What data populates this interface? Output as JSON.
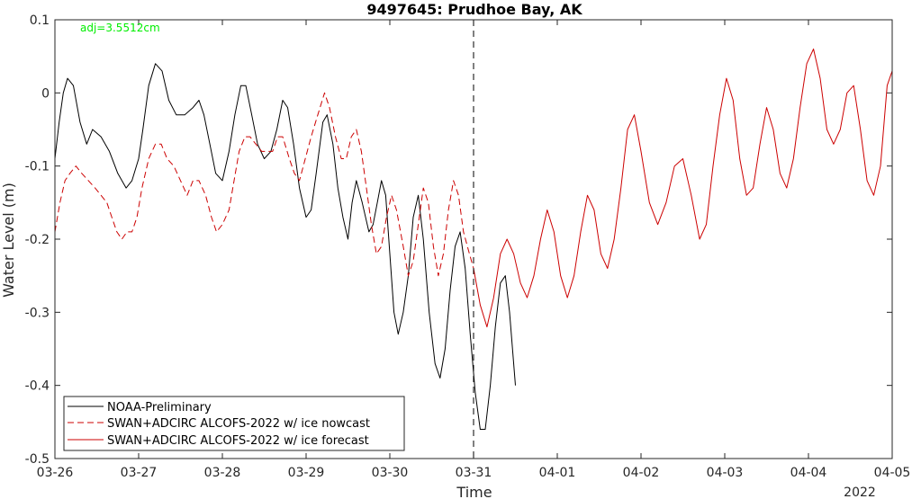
{
  "chart_data": {
    "type": "line",
    "title": "9497645: Prudhoe Bay, AK",
    "xlabel": "Time",
    "ylabel": "Water Level (m)",
    "year_label": "2022",
    "annotation": {
      "text": "adj=3.5512cm",
      "color": "#00ee00"
    },
    "x_ticks": [
      "03-26",
      "03-27",
      "03-28",
      "03-29",
      "03-30",
      "03-31",
      "04-01",
      "04-02",
      "04-03",
      "04-04",
      "04-05"
    ],
    "xlim_days": [
      0,
      10
    ],
    "ylim": [
      -0.5,
      0.1
    ],
    "y_ticks": [
      0.1,
      0,
      -0.1,
      -0.2,
      -0.3,
      -0.4,
      -0.5
    ],
    "y_tick_labels": [
      "0.1",
      "0",
      "-0.1",
      "-0.2",
      "-0.3",
      "-0.4",
      "-0.5"
    ],
    "nowcast_forecast_split_day": 5,
    "legend": {
      "position": "bottom-left"
    },
    "series": [
      {
        "name": "NOAA-Preliminary",
        "color": "#000000",
        "style": "solid",
        "points": [
          [
            0.0,
            -0.09
          ],
          [
            0.05,
            -0.04
          ],
          [
            0.1,
            0.0
          ],
          [
            0.15,
            0.02
          ],
          [
            0.22,
            0.01
          ],
          [
            0.3,
            -0.04
          ],
          [
            0.38,
            -0.07
          ],
          [
            0.45,
            -0.05
          ],
          [
            0.55,
            -0.06
          ],
          [
            0.65,
            -0.08
          ],
          [
            0.75,
            -0.11
          ],
          [
            0.85,
            -0.13
          ],
          [
            0.92,
            -0.12
          ],
          [
            1.0,
            -0.09
          ],
          [
            1.05,
            -0.05
          ],
          [
            1.12,
            0.01
          ],
          [
            1.2,
            0.04
          ],
          [
            1.28,
            0.03
          ],
          [
            1.36,
            -0.01
          ],
          [
            1.45,
            -0.03
          ],
          [
            1.55,
            -0.03
          ],
          [
            1.65,
            -0.02
          ],
          [
            1.72,
            -0.01
          ],
          [
            1.78,
            -0.03
          ],
          [
            1.85,
            -0.07
          ],
          [
            1.92,
            -0.11
          ],
          [
            2.0,
            -0.12
          ],
          [
            2.08,
            -0.08
          ],
          [
            2.15,
            -0.03
          ],
          [
            2.22,
            0.01
          ],
          [
            2.28,
            0.01
          ],
          [
            2.35,
            -0.03
          ],
          [
            2.42,
            -0.07
          ],
          [
            2.5,
            -0.09
          ],
          [
            2.58,
            -0.08
          ],
          [
            2.65,
            -0.05
          ],
          [
            2.72,
            -0.01
          ],
          [
            2.78,
            -0.02
          ],
          [
            2.85,
            -0.07
          ],
          [
            2.92,
            -0.13
          ],
          [
            3.0,
            -0.17
          ],
          [
            3.06,
            -0.16
          ],
          [
            3.12,
            -0.11
          ],
          [
            3.2,
            -0.04
          ],
          [
            3.25,
            -0.03
          ],
          [
            3.32,
            -0.07
          ],
          [
            3.38,
            -0.13
          ],
          [
            3.44,
            -0.17
          ],
          [
            3.5,
            -0.2
          ],
          [
            3.55,
            -0.15
          ],
          [
            3.6,
            -0.12
          ],
          [
            3.67,
            -0.15
          ],
          [
            3.75,
            -0.19
          ],
          [
            3.8,
            -0.18
          ],
          [
            3.85,
            -0.15
          ],
          [
            3.9,
            -0.12
          ],
          [
            3.95,
            -0.14
          ],
          [
            4.0,
            -0.22
          ],
          [
            4.05,
            -0.3
          ],
          [
            4.1,
            -0.33
          ],
          [
            4.16,
            -0.3
          ],
          [
            4.22,
            -0.25
          ],
          [
            4.28,
            -0.17
          ],
          [
            4.34,
            -0.14
          ],
          [
            4.4,
            -0.2
          ],
          [
            4.47,
            -0.3
          ],
          [
            4.54,
            -0.37
          ],
          [
            4.6,
            -0.39
          ],
          [
            4.66,
            -0.35
          ],
          [
            4.72,
            -0.27
          ],
          [
            4.78,
            -0.21
          ],
          [
            4.84,
            -0.19
          ],
          [
            4.9,
            -0.24
          ],
          [
            4.96,
            -0.33
          ],
          [
            5.02,
            -0.41
          ],
          [
            5.08,
            -0.46
          ],
          [
            5.14,
            -0.46
          ],
          [
            5.2,
            -0.4
          ],
          [
            5.26,
            -0.32
          ],
          [
            5.32,
            -0.26
          ],
          [
            5.38,
            -0.25
          ],
          [
            5.43,
            -0.3
          ],
          [
            5.5,
            -0.4
          ]
        ]
      },
      {
        "name": "SWAN+ADCIRC ALCOFS-2022 w/ ice nowcast",
        "color": "#cc0000",
        "style": "dashed",
        "points": [
          [
            0.0,
            -0.19
          ],
          [
            0.06,
            -0.15
          ],
          [
            0.12,
            -0.12
          ],
          [
            0.18,
            -0.11
          ],
          [
            0.25,
            -0.1
          ],
          [
            0.32,
            -0.11
          ],
          [
            0.4,
            -0.12
          ],
          [
            0.48,
            -0.13
          ],
          [
            0.55,
            -0.14
          ],
          [
            0.62,
            -0.15
          ],
          [
            0.68,
            -0.17
          ],
          [
            0.74,
            -0.19
          ],
          [
            0.8,
            -0.2
          ],
          [
            0.86,
            -0.19
          ],
          [
            0.92,
            -0.19
          ],
          [
            0.98,
            -0.17
          ],
          [
            1.04,
            -0.13
          ],
          [
            1.12,
            -0.09
          ],
          [
            1.2,
            -0.07
          ],
          [
            1.27,
            -0.07
          ],
          [
            1.34,
            -0.09
          ],
          [
            1.42,
            -0.1
          ],
          [
            1.5,
            -0.12
          ],
          [
            1.58,
            -0.14
          ],
          [
            1.65,
            -0.12
          ],
          [
            1.72,
            -0.12
          ],
          [
            1.8,
            -0.14
          ],
          [
            1.87,
            -0.17
          ],
          [
            1.93,
            -0.19
          ],
          [
            2.0,
            -0.18
          ],
          [
            2.08,
            -0.16
          ],
          [
            2.14,
            -0.12
          ],
          [
            2.2,
            -0.08
          ],
          [
            2.27,
            -0.06
          ],
          [
            2.33,
            -0.06
          ],
          [
            2.4,
            -0.07
          ],
          [
            2.47,
            -0.08
          ],
          [
            2.54,
            -0.08
          ],
          [
            2.6,
            -0.08
          ],
          [
            2.66,
            -0.06
          ],
          [
            2.72,
            -0.06
          ],
          [
            2.8,
            -0.09
          ],
          [
            2.86,
            -0.11
          ],
          [
            2.92,
            -0.12
          ],
          [
            2.99,
            -0.09
          ],
          [
            3.06,
            -0.06
          ],
          [
            3.14,
            -0.03
          ],
          [
            3.22,
            0.0
          ],
          [
            3.28,
            -0.02
          ],
          [
            3.35,
            -0.06
          ],
          [
            3.42,
            -0.09
          ],
          [
            3.48,
            -0.09
          ],
          [
            3.54,
            -0.06
          ],
          [
            3.6,
            -0.05
          ],
          [
            3.66,
            -0.08
          ],
          [
            3.72,
            -0.13
          ],
          [
            3.78,
            -0.18
          ],
          [
            3.84,
            -0.22
          ],
          [
            3.9,
            -0.21
          ],
          [
            3.96,
            -0.17
          ],
          [
            4.02,
            -0.14
          ],
          [
            4.08,
            -0.16
          ],
          [
            4.16,
            -0.21
          ],
          [
            4.22,
            -0.25
          ],
          [
            4.28,
            -0.23
          ],
          [
            4.34,
            -0.18
          ],
          [
            4.4,
            -0.13
          ],
          [
            4.46,
            -0.15
          ],
          [
            4.52,
            -0.21
          ],
          [
            4.58,
            -0.25
          ],
          [
            4.64,
            -0.22
          ],
          [
            4.7,
            -0.16
          ],
          [
            4.76,
            -0.12
          ],
          [
            4.82,
            -0.14
          ],
          [
            4.88,
            -0.19
          ],
          [
            4.95,
            -0.22
          ],
          [
            5.0,
            -0.24
          ]
        ]
      },
      {
        "name": "SWAN+ADCIRC ALCOFS-2022 w/ ice forecast",
        "color": "#cc0000",
        "style": "solid",
        "points": [
          [
            5.0,
            -0.24
          ],
          [
            5.08,
            -0.29
          ],
          [
            5.16,
            -0.32
          ],
          [
            5.24,
            -0.28
          ],
          [
            5.32,
            -0.22
          ],
          [
            5.4,
            -0.2
          ],
          [
            5.48,
            -0.22
          ],
          [
            5.56,
            -0.26
          ],
          [
            5.64,
            -0.28
          ],
          [
            5.72,
            -0.25
          ],
          [
            5.8,
            -0.2
          ],
          [
            5.88,
            -0.16
          ],
          [
            5.96,
            -0.19
          ],
          [
            6.04,
            -0.25
          ],
          [
            6.12,
            -0.28
          ],
          [
            6.2,
            -0.25
          ],
          [
            6.28,
            -0.19
          ],
          [
            6.36,
            -0.14
          ],
          [
            6.44,
            -0.16
          ],
          [
            6.52,
            -0.22
          ],
          [
            6.6,
            -0.24
          ],
          [
            6.68,
            -0.2
          ],
          [
            6.76,
            -0.13
          ],
          [
            6.84,
            -0.05
          ],
          [
            6.92,
            -0.03
          ],
          [
            7.0,
            -0.08
          ],
          [
            7.1,
            -0.15
          ],
          [
            7.2,
            -0.18
          ],
          [
            7.3,
            -0.15
          ],
          [
            7.4,
            -0.1
          ],
          [
            7.5,
            -0.09
          ],
          [
            7.6,
            -0.14
          ],
          [
            7.7,
            -0.2
          ],
          [
            7.78,
            -0.18
          ],
          [
            7.86,
            -0.1
          ],
          [
            7.94,
            -0.03
          ],
          [
            8.02,
            0.02
          ],
          [
            8.1,
            -0.01
          ],
          [
            8.18,
            -0.09
          ],
          [
            8.26,
            -0.14
          ],
          [
            8.34,
            -0.13
          ],
          [
            8.42,
            -0.07
          ],
          [
            8.5,
            -0.02
          ],
          [
            8.58,
            -0.05
          ],
          [
            8.66,
            -0.11
          ],
          [
            8.74,
            -0.13
          ],
          [
            8.82,
            -0.09
          ],
          [
            8.9,
            -0.02
          ],
          [
            8.98,
            0.04
          ],
          [
            9.06,
            0.06
          ],
          [
            9.14,
            0.02
          ],
          [
            9.22,
            -0.05
          ],
          [
            9.3,
            -0.07
          ],
          [
            9.38,
            -0.05
          ],
          [
            9.46,
            0.0
          ],
          [
            9.54,
            0.01
          ],
          [
            9.62,
            -0.05
          ],
          [
            9.7,
            -0.12
          ],
          [
            9.78,
            -0.14
          ],
          [
            9.86,
            -0.1
          ],
          [
            9.94,
            0.01
          ],
          [
            10.0,
            0.03
          ]
        ]
      }
    ]
  }
}
